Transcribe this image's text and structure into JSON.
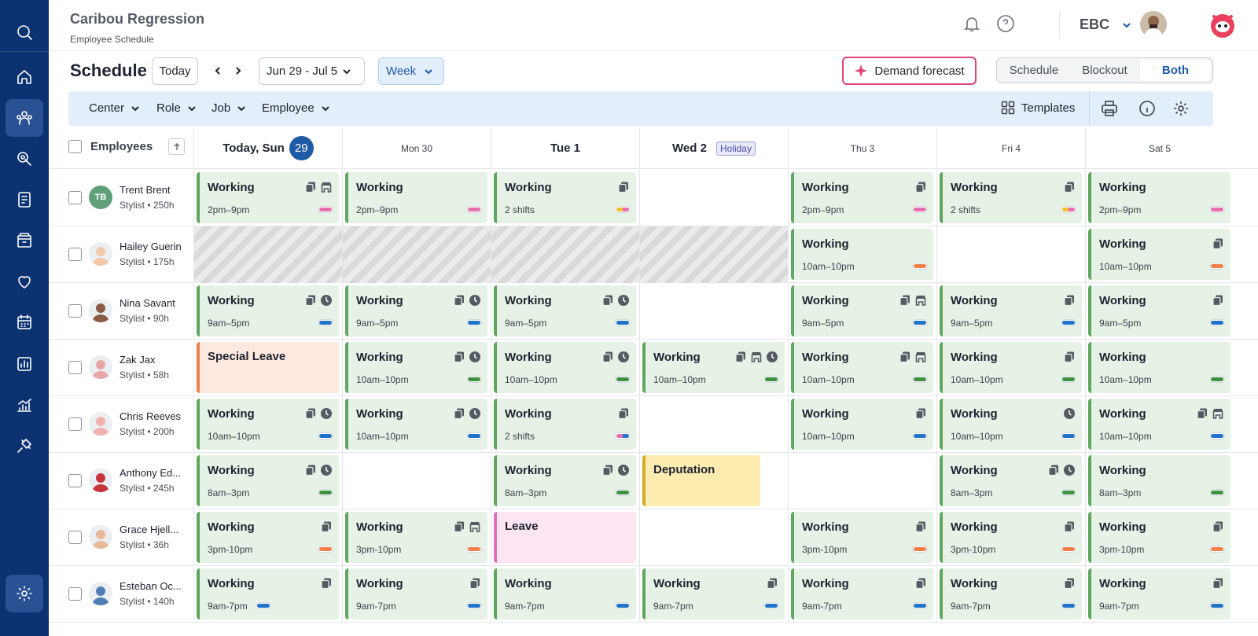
{
  "app": {
    "title": "Caribou Regression",
    "subtitle": "Employee Schedule"
  },
  "org": {
    "name": "EBC"
  },
  "toolbar": {
    "page_title": "Schedule",
    "today_label": "Today",
    "date_range": "Jun 29 - Jul 5",
    "view_mode": "Week",
    "forecast_label": "Demand forecast",
    "segments": [
      "Schedule",
      "Blockout",
      "Both"
    ],
    "active_segment": "Both"
  },
  "filters": {
    "items": [
      "Center",
      "Role",
      "Job",
      "Employee"
    ],
    "templates_label": "Templates"
  },
  "grid": {
    "employees_header": "Employees",
    "days": [
      {
        "label": "Today, Sun",
        "badge": "29",
        "bold": true
      },
      {
        "label": "Mon 30",
        "bold": false
      },
      {
        "label": "Tue 1",
        "bold": true
      },
      {
        "label": "Wed 2",
        "bold": true,
        "tag": "Holiday"
      },
      {
        "label": "Thu 3",
        "bold": false
      },
      {
        "label": "Fri 4",
        "bold": false
      },
      {
        "label": "Sat 5",
        "bold": false
      }
    ]
  },
  "colors": {
    "sidebar": "#0d3272",
    "accent": "#1e5aa5",
    "shift_bg": "#e6f2e6",
    "shift_border": "#5fa65f",
    "pill_pink": "#e86fae",
    "pill_orange": "#f0804b",
    "pill_blue": "#1f74c8",
    "pill_green": "#3d9140",
    "pill_yellow": "#f2c12e"
  },
  "employees": [
    {
      "name": "Trent Brent",
      "role": "Stylist",
      "hours": "250h",
      "initials": "TB",
      "avatar_color": "#5fa07a",
      "shifts": [
        {
          "type": "work",
          "title": "Working",
          "sub": "2pm–9pm",
          "icons": [
            "copy",
            "store"
          ],
          "pill": [
            "#e86fae"
          ]
        },
        {
          "type": "work",
          "title": "Working",
          "sub": "2pm–9pm",
          "icons": [],
          "pill": [
            "#e86fae"
          ]
        },
        {
          "type": "work",
          "title": "Working",
          "sub": "2 shifts",
          "icons": [
            "copy"
          ],
          "pill": [
            "#f2c12e",
            "#e86fae"
          ]
        },
        {
          "type": "empty"
        },
        {
          "type": "work",
          "title": "Working",
          "sub": "2pm–9pm",
          "icons": [
            "copy"
          ],
          "pill": [
            "#e86fae"
          ]
        },
        {
          "type": "work",
          "title": "Working",
          "sub": "2 shifts",
          "icons": [
            "copy"
          ],
          "pill": [
            "#f2c12e",
            "#e86fae"
          ]
        },
        {
          "type": "work",
          "title": "Working",
          "sub": "2pm–9pm",
          "icons": [],
          "pill": [
            "#e86fae"
          ]
        }
      ]
    },
    {
      "name": "Hailey Guerin",
      "role": "Stylist",
      "hours": "175h",
      "avatar_color": "#f1c8a8",
      "shifts": [
        {
          "type": "hatched"
        },
        {
          "type": "hatched"
        },
        {
          "type": "hatched"
        },
        {
          "type": "hatched"
        },
        {
          "type": "work",
          "title": "Working",
          "sub": "10am–10pm",
          "icons": [],
          "pill": [
            "#f0804b"
          ]
        },
        {
          "type": "empty"
        },
        {
          "type": "work",
          "title": "Working",
          "sub": "10am–10pm",
          "icons": [
            "copy"
          ],
          "pill": [
            "#f0804b"
          ]
        }
      ]
    },
    {
      "name": "Nina Savant",
      "role": "Stylist",
      "hours": "90h",
      "avatar_color": "#8a5a44",
      "shifts": [
        {
          "type": "work",
          "title": "Working",
          "sub": "9am–5pm",
          "icons": [
            "copy",
            "clock"
          ],
          "pill": [
            "#1f74c8"
          ]
        },
        {
          "type": "work",
          "title": "Working",
          "sub": "9am–5pm",
          "icons": [
            "copy",
            "clock"
          ],
          "pill": [
            "#1f74c8"
          ]
        },
        {
          "type": "work",
          "title": "Working",
          "sub": "9am–5pm",
          "icons": [
            "copy",
            "clock"
          ],
          "pill": [
            "#1f74c8"
          ]
        },
        {
          "type": "empty"
        },
        {
          "type": "work",
          "title": "Working",
          "sub": "9am–5pm",
          "icons": [
            "copy",
            "store"
          ],
          "pill": [
            "#1f74c8"
          ]
        },
        {
          "type": "work",
          "title": "Working",
          "sub": "9am–5pm",
          "icons": [
            "copy"
          ],
          "pill": [
            "#1f74c8"
          ]
        },
        {
          "type": "work",
          "title": "Working",
          "sub": "9am–5pm",
          "icons": [
            "copy"
          ],
          "pill": [
            "#1f74c8"
          ]
        }
      ]
    },
    {
      "name": "Zak Jax",
      "role": "Stylist",
      "hours": "58h",
      "avatar_color": "#e7a6a6",
      "shifts": [
        {
          "type": "leave",
          "variant": "orange",
          "title": "Special Leave"
        },
        {
          "type": "work",
          "title": "Working",
          "sub": "10am–10pm",
          "icons": [
            "copy",
            "clock"
          ],
          "pill": [
            "#3d9140"
          ]
        },
        {
          "type": "work",
          "title": "Working",
          "sub": "10am–10pm",
          "icons": [
            "copy",
            "clock"
          ],
          "pill": [
            "#3d9140"
          ]
        },
        {
          "type": "work",
          "title": "Working",
          "sub": "10am–10pm",
          "icons": [
            "copy",
            "store",
            "clock"
          ],
          "pill": [
            "#3d9140"
          ]
        },
        {
          "type": "work",
          "title": "Working",
          "sub": "10am–10pm",
          "icons": [
            "copy",
            "store"
          ],
          "pill": [
            "#3d9140"
          ]
        },
        {
          "type": "work",
          "title": "Working",
          "sub": "10am–10pm",
          "icons": [
            "copy"
          ],
          "pill": [
            "#3d9140"
          ]
        },
        {
          "type": "work",
          "title": "Working",
          "sub": "10am–10pm",
          "icons": [],
          "pill": [
            "#3d9140"
          ]
        }
      ]
    },
    {
      "name": "Chris Reeves",
      "role": "Stylist",
      "hours": "200h",
      "avatar_color": "#f0b1b1",
      "shifts": [
        {
          "type": "work",
          "title": "Working",
          "sub": "10am–10pm",
          "icons": [
            "copy",
            "clock"
          ],
          "pill": [
            "#1f74c8"
          ]
        },
        {
          "type": "work",
          "title": "Working",
          "sub": "10am–10pm",
          "icons": [
            "copy",
            "clock"
          ],
          "pill": [
            "#1f74c8"
          ]
        },
        {
          "type": "work",
          "title": "Working",
          "sub": "2 shifts",
          "icons": [
            "copy"
          ],
          "pill": [
            "#e86fae",
            "#1f74c8"
          ]
        },
        {
          "type": "empty"
        },
        {
          "type": "work",
          "title": "Working",
          "sub": "10am–10pm",
          "icons": [
            "copy"
          ],
          "pill": [
            "#1f74c8"
          ]
        },
        {
          "type": "work",
          "title": "Working",
          "sub": "10am–10pm",
          "icons": [
            "clock"
          ],
          "pill": [
            "#1f74c8"
          ]
        },
        {
          "type": "work",
          "title": "Working",
          "sub": "10am–10pm",
          "icons": [
            "copy",
            "store"
          ],
          "pill": [
            "#1f74c8"
          ]
        }
      ]
    },
    {
      "name": "Anthony Ed...",
      "role": "Stylist",
      "hours": "245h",
      "avatar_color": "#c8343b",
      "shifts": [
        {
          "type": "work",
          "title": "Working",
          "sub": "8am–3pm",
          "icons": [
            "copy",
            "clock"
          ],
          "pill": [
            "#3d9140"
          ]
        },
        {
          "type": "empty"
        },
        {
          "type": "work",
          "title": "Working",
          "sub": "8am–3pm",
          "icons": [
            "copy",
            "clock"
          ],
          "pill": [
            "#3d9140"
          ]
        },
        {
          "type": "leave",
          "variant": "yellow",
          "title": "Deputation",
          "short": true
        },
        {
          "type": "empty"
        },
        {
          "type": "work",
          "title": "Working",
          "sub": "8am–3pm",
          "icons": [
            "copy",
            "clock"
          ],
          "pill": [
            "#3d9140"
          ]
        },
        {
          "type": "work",
          "title": "Working",
          "sub": "8am–3pm",
          "icons": [],
          "pill": [
            "#3d9140"
          ]
        }
      ]
    },
    {
      "name": "Grace Hjell...",
      "role": "Stylist",
      "hours": "36h",
      "avatar_color": "#e8b998",
      "shifts": [
        {
          "type": "work",
          "title": "Working",
          "sub": "3pm-10pm",
          "icons": [
            "copy"
          ],
          "pill": [
            "#f0804b"
          ]
        },
        {
          "type": "work",
          "title": "Working",
          "sub": "3pm-10pm",
          "icons": [
            "copy",
            "store"
          ],
          "pill": [
            "#f0804b"
          ]
        },
        {
          "type": "leave",
          "variant": "pink",
          "title": "Leave"
        },
        {
          "type": "empty"
        },
        {
          "type": "work",
          "title": "Working",
          "sub": "3pm-10pm",
          "icons": [
            "copy"
          ],
          "pill": [
            "#f0804b"
          ]
        },
        {
          "type": "work",
          "title": "Working",
          "sub": "3pm-10pm",
          "icons": [
            "copy"
          ],
          "pill": [
            "#f0804b"
          ]
        },
        {
          "type": "work",
          "title": "Working",
          "sub": "3pm-10pm",
          "icons": [
            "copy"
          ],
          "pill": [
            "#f0804b"
          ]
        }
      ]
    },
    {
      "name": "Esteban Oc...",
      "role": "Stylist",
      "hours": "140h",
      "avatar_color": "#4f7fb2",
      "shifts": [
        {
          "type": "work",
          "title": "Working",
          "sub": "9am-7pm",
          "icons": [
            "copy"
          ],
          "pill": [
            "#1f74c8"
          ],
          "pill_left": true
        },
        {
          "type": "work",
          "title": "Working",
          "sub": "9am-7pm",
          "icons": [
            "copy"
          ],
          "pill": [
            "#1f74c8"
          ]
        },
        {
          "type": "work",
          "title": "Working",
          "sub": "9am-7pm",
          "icons": [],
          "pill": [
            "#1f74c8"
          ]
        },
        {
          "type": "work",
          "title": "Working",
          "sub": "9am-7pm",
          "icons": [
            "copy"
          ],
          "pill": [
            "#1f74c8"
          ]
        },
        {
          "type": "work",
          "title": "Working",
          "sub": "9am-7pm",
          "icons": [
            "copy"
          ],
          "pill": [
            "#1f74c8"
          ]
        },
        {
          "type": "work",
          "title": "Working",
          "sub": "9am-7pm",
          "icons": [
            "copy"
          ],
          "pill": [
            "#1f74c8"
          ]
        },
        {
          "type": "work",
          "title": "Working",
          "sub": "9am-7pm",
          "icons": [
            "copy"
          ],
          "pill": [
            "#1f74c8"
          ]
        }
      ]
    }
  ]
}
